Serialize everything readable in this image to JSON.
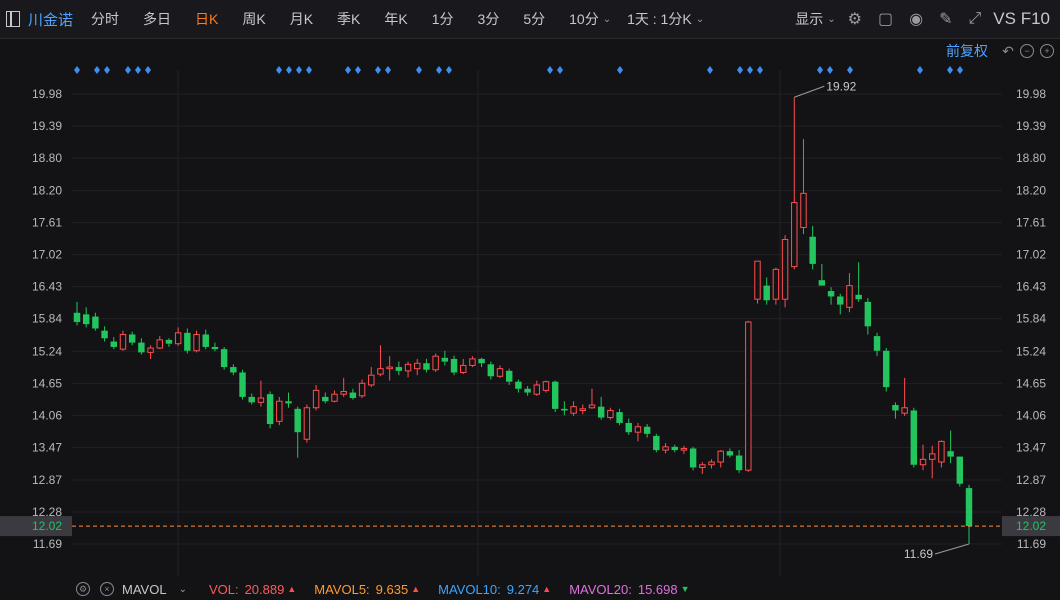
{
  "toolbar": {
    "title": "川金诺",
    "periods": [
      "分时",
      "多日",
      "日K",
      "周K",
      "月K",
      "季K",
      "年K",
      "1分",
      "3分",
      "5分",
      "10分"
    ],
    "active_period": "日K",
    "interval": "1天 : 1分K",
    "display": "显示",
    "right_text": "VS F10"
  },
  "subbar": {
    "adjust": "前复权"
  },
  "chart_data": {
    "type": "candlestick",
    "y_ticks": [
      "19.98",
      "19.39",
      "18.80",
      "18.20",
      "17.61",
      "17.02",
      "16.43",
      "15.84",
      "15.24",
      "14.65",
      "14.06",
      "13.47",
      "12.87",
      "12.28",
      "11.69"
    ],
    "ylim": [
      11.69,
      19.98
    ],
    "current_price": "12.02",
    "high_label": "19.92",
    "low_label": "11.69",
    "up_color": "#ff4d4f",
    "down_color": "#22c55e",
    "candles": [
      {
        "o": 15.95,
        "h": 16.15,
        "l": 15.72,
        "c": 15.78
      },
      {
        "o": 15.92,
        "h": 16.05,
        "l": 15.68,
        "c": 15.74
      },
      {
        "o": 15.88,
        "h": 15.95,
        "l": 15.62,
        "c": 15.66
      },
      {
        "o": 15.62,
        "h": 15.7,
        "l": 15.42,
        "c": 15.48
      },
      {
        "o": 15.42,
        "h": 15.5,
        "l": 15.28,
        "c": 15.32
      },
      {
        "o": 15.28,
        "h": 15.62,
        "l": 15.25,
        "c": 15.55
      },
      {
        "o": 15.55,
        "h": 15.6,
        "l": 15.35,
        "c": 15.4
      },
      {
        "o": 15.4,
        "h": 15.48,
        "l": 15.18,
        "c": 15.22
      },
      {
        "o": 15.22,
        "h": 15.35,
        "l": 15.1,
        "c": 15.3
      },
      {
        "o": 15.3,
        "h": 15.52,
        "l": 15.28,
        "c": 15.45
      },
      {
        "o": 15.45,
        "h": 15.48,
        "l": 15.32,
        "c": 15.38
      },
      {
        "o": 15.38,
        "h": 15.68,
        "l": 15.34,
        "c": 15.58
      },
      {
        "o": 15.58,
        "h": 15.66,
        "l": 15.2,
        "c": 15.25
      },
      {
        "o": 15.25,
        "h": 15.62,
        "l": 15.22,
        "c": 15.55
      },
      {
        "o": 15.55,
        "h": 15.64,
        "l": 15.28,
        "c": 15.32
      },
      {
        "o": 15.32,
        "h": 15.4,
        "l": 15.24,
        "c": 15.28
      },
      {
        "o": 15.28,
        "h": 15.32,
        "l": 14.9,
        "c": 14.95
      },
      {
        "o": 14.95,
        "h": 15.0,
        "l": 14.8,
        "c": 14.85
      },
      {
        "o": 14.85,
        "h": 14.9,
        "l": 14.35,
        "c": 14.4
      },
      {
        "o": 14.4,
        "h": 14.46,
        "l": 14.26,
        "c": 14.3
      },
      {
        "o": 14.3,
        "h": 14.7,
        "l": 14.22,
        "c": 14.38
      },
      {
        "o": 14.45,
        "h": 14.5,
        "l": 13.82,
        "c": 13.9
      },
      {
        "o": 13.95,
        "h": 14.4,
        "l": 13.88,
        "c": 14.32
      },
      {
        "o": 14.32,
        "h": 14.48,
        "l": 14.2,
        "c": 14.28
      },
      {
        "o": 14.18,
        "h": 14.22,
        "l": 13.28,
        "c": 13.75
      },
      {
        "o": 13.62,
        "h": 14.26,
        "l": 13.56,
        "c": 14.2
      },
      {
        "o": 14.2,
        "h": 14.62,
        "l": 14.15,
        "c": 14.52
      },
      {
        "o": 14.4,
        "h": 14.48,
        "l": 14.28,
        "c": 14.32
      },
      {
        "o": 14.32,
        "h": 14.52,
        "l": 14.3,
        "c": 14.45
      },
      {
        "o": 14.45,
        "h": 14.75,
        "l": 14.4,
        "c": 14.5
      },
      {
        "o": 14.48,
        "h": 14.55,
        "l": 14.35,
        "c": 14.38
      },
      {
        "o": 14.42,
        "h": 14.72,
        "l": 14.38,
        "c": 14.65
      },
      {
        "o": 14.62,
        "h": 14.95,
        "l": 14.58,
        "c": 14.8
      },
      {
        "o": 14.82,
        "h": 15.35,
        "l": 14.78,
        "c": 14.92
      },
      {
        "o": 14.92,
        "h": 15.15,
        "l": 14.7,
        "c": 14.95
      },
      {
        "o": 14.95,
        "h": 15.05,
        "l": 14.8,
        "c": 14.88
      },
      {
        "o": 14.88,
        "h": 15.05,
        "l": 14.76,
        "c": 15.0
      },
      {
        "o": 14.92,
        "h": 15.1,
        "l": 14.8,
        "c": 15.02
      },
      {
        "o": 15.02,
        "h": 15.1,
        "l": 14.85,
        "c": 14.9
      },
      {
        "o": 14.9,
        "h": 15.2,
        "l": 14.86,
        "c": 15.15
      },
      {
        "o": 15.12,
        "h": 15.25,
        "l": 14.98,
        "c": 15.05
      },
      {
        "o": 15.1,
        "h": 15.16,
        "l": 14.8,
        "c": 14.85
      },
      {
        "o": 14.85,
        "h": 15.1,
        "l": 14.82,
        "c": 14.98
      },
      {
        "o": 14.98,
        "h": 15.15,
        "l": 14.95,
        "c": 15.1
      },
      {
        "o": 15.1,
        "h": 15.12,
        "l": 14.95,
        "c": 15.02
      },
      {
        "o": 15.0,
        "h": 15.05,
        "l": 14.72,
        "c": 14.78
      },
      {
        "o": 14.78,
        "h": 14.98,
        "l": 14.75,
        "c": 14.92
      },
      {
        "o": 14.88,
        "h": 14.92,
        "l": 14.62,
        "c": 14.68
      },
      {
        "o": 14.68,
        "h": 14.72,
        "l": 14.48,
        "c": 14.55
      },
      {
        "o": 14.55,
        "h": 14.6,
        "l": 14.42,
        "c": 14.48
      },
      {
        "o": 14.45,
        "h": 14.7,
        "l": 14.42,
        "c": 14.62
      },
      {
        "o": 14.52,
        "h": 14.7,
        "l": 14.48,
        "c": 14.68
      },
      {
        "o": 14.68,
        "h": 14.7,
        "l": 14.12,
        "c": 14.18
      },
      {
        "o": 14.18,
        "h": 14.32,
        "l": 14.06,
        "c": 14.15
      },
      {
        "o": 14.1,
        "h": 14.32,
        "l": 14.05,
        "c": 14.22
      },
      {
        "o": 14.15,
        "h": 14.26,
        "l": 14.08,
        "c": 14.18
      },
      {
        "o": 14.2,
        "h": 14.55,
        "l": 14.18,
        "c": 14.25
      },
      {
        "o": 14.22,
        "h": 14.4,
        "l": 13.98,
        "c": 14.02
      },
      {
        "o": 14.02,
        "h": 14.2,
        "l": 13.98,
        "c": 14.15
      },
      {
        "o": 14.12,
        "h": 14.18,
        "l": 13.88,
        "c": 13.92
      },
      {
        "o": 13.92,
        "h": 14.0,
        "l": 13.7,
        "c": 13.75
      },
      {
        "o": 13.75,
        "h": 13.92,
        "l": 13.58,
        "c": 13.85
      },
      {
        "o": 13.85,
        "h": 13.9,
        "l": 13.65,
        "c": 13.72
      },
      {
        "o": 13.68,
        "h": 13.72,
        "l": 13.38,
        "c": 13.42
      },
      {
        "o": 13.42,
        "h": 13.55,
        "l": 13.36,
        "c": 13.48
      },
      {
        "o": 13.48,
        "h": 13.52,
        "l": 13.38,
        "c": 13.42
      },
      {
        "o": 13.42,
        "h": 13.5,
        "l": 13.35,
        "c": 13.45
      },
      {
        "o": 13.45,
        "h": 13.48,
        "l": 13.05,
        "c": 13.1
      },
      {
        "o": 13.1,
        "h": 13.2,
        "l": 12.98,
        "c": 13.15
      },
      {
        "o": 13.15,
        "h": 13.25,
        "l": 13.08,
        "c": 13.2
      },
      {
        "o": 13.2,
        "h": 13.42,
        "l": 13.1,
        "c": 13.4
      },
      {
        "o": 13.4,
        "h": 13.45,
        "l": 13.28,
        "c": 13.32
      },
      {
        "o": 13.32,
        "h": 13.42,
        "l": 13.0,
        "c": 13.05
      },
      {
        "o": 13.05,
        "h": 15.8,
        "l": 13.02,
        "c": 15.78
      },
      {
        "o": 16.2,
        "h": 16.9,
        "l": 16.12,
        "c": 16.9
      },
      {
        "o": 16.45,
        "h": 16.6,
        "l": 16.1,
        "c": 16.18
      },
      {
        "o": 16.2,
        "h": 16.78,
        "l": 16.1,
        "c": 16.75
      },
      {
        "o": 16.2,
        "h": 17.38,
        "l": 16.05,
        "c": 17.3
      },
      {
        "o": 16.8,
        "h": 19.92,
        "l": 16.75,
        "c": 17.98
      },
      {
        "o": 17.52,
        "h": 19.15,
        "l": 17.4,
        "c": 18.15
      },
      {
        "o": 17.35,
        "h": 17.55,
        "l": 16.75,
        "c": 16.85
      },
      {
        "o": 16.55,
        "h": 16.85,
        "l": 16.48,
        "c": 16.45
      },
      {
        "o": 16.35,
        "h": 16.42,
        "l": 16.1,
        "c": 16.25
      },
      {
        "o": 16.25,
        "h": 16.3,
        "l": 15.92,
        "c": 16.1
      },
      {
        "o": 16.05,
        "h": 16.68,
        "l": 15.96,
        "c": 16.45
      },
      {
        "o": 16.28,
        "h": 16.88,
        "l": 16.15,
        "c": 16.2
      },
      {
        "o": 16.15,
        "h": 16.22,
        "l": 15.55,
        "c": 15.7
      },
      {
        "o": 15.52,
        "h": 15.58,
        "l": 15.15,
        "c": 15.25
      },
      {
        "o": 15.25,
        "h": 15.3,
        "l": 14.5,
        "c": 14.58
      },
      {
        "o": 14.25,
        "h": 14.3,
        "l": 14.0,
        "c": 14.15
      },
      {
        "o": 14.1,
        "h": 14.75,
        "l": 14.05,
        "c": 14.2
      },
      {
        "o": 14.15,
        "h": 14.2,
        "l": 13.1,
        "c": 13.15
      },
      {
        "o": 13.15,
        "h": 13.52,
        "l": 13.05,
        "c": 13.25
      },
      {
        "o": 13.25,
        "h": 13.5,
        "l": 12.9,
        "c": 13.35
      },
      {
        "o": 13.2,
        "h": 13.6,
        "l": 13.1,
        "c": 13.58
      },
      {
        "o": 13.4,
        "h": 13.78,
        "l": 13.18,
        "c": 13.3
      },
      {
        "o": 13.3,
        "h": 13.3,
        "l": 12.75,
        "c": 12.8
      },
      {
        "o": 12.72,
        "h": 12.78,
        "l": 11.69,
        "c": 12.02
      }
    ]
  },
  "bottom": {
    "indicator": "MAVOL",
    "vol_label": "VOL:",
    "vol_value": "20.889",
    "vol_color": "#ff5a5a",
    "ma5_label": "MAVOL5:",
    "ma5_value": "9.635",
    "ma5_color": "#ff9a2e",
    "ma10_label": "MAVOL10:",
    "ma10_value": "9.274",
    "ma10_color": "#3aa6ff",
    "ma20_label": "MAVOL20:",
    "ma20_value": "15.698",
    "ma20_color": "#e070e0"
  }
}
